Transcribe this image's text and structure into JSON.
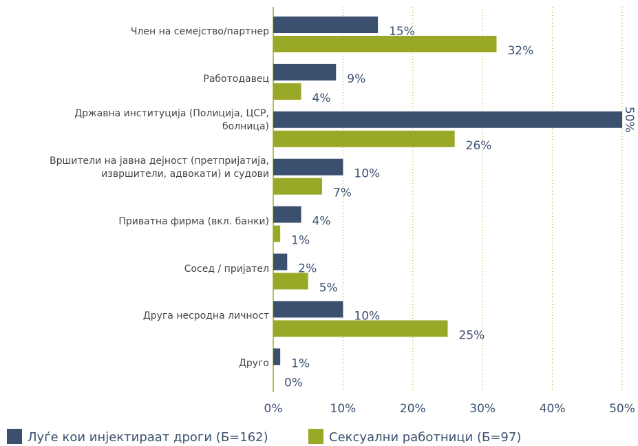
{
  "chart_data": {
    "type": "bar",
    "orientation": "horizontal",
    "categories": [
      "Член на семејство/партнер",
      "Работодавец",
      "Државна институција (Полиција, ЦСР, болница)",
      "Вршители на јавна дејност (претпријатија, извршители, адвокати) и судови",
      "Приватна фирма (вкл. банки)",
      "Сосед / пријател",
      "Друга несродна личност",
      "Друго"
    ],
    "series": [
      {
        "name": "Луѓе кои инјектираат droги (Б=162)",
        "color": "#3b506f",
        "values": [
          15,
          9,
          50,
          10,
          4,
          2,
          10,
          1
        ],
        "value_labels": [
          "15%",
          "9%",
          "50%",
          "10%",
          "4%",
          "2%",
          "10%",
          "1%"
        ]
      },
      {
        "name": "Сексуални работници (Б=97)",
        "color": "#9aa828",
        "values": [
          32,
          4,
          26,
          7,
          1,
          5,
          25,
          0
        ],
        "value_labels": [
          "32%",
          "4%",
          "26%",
          "7%",
          "1%",
          "5%",
          "25%",
          "0%"
        ]
      }
    ],
    "xlim": [
      0,
      50
    ],
    "xticks": [
      {
        "value": 0,
        "label": "0%"
      },
      {
        "value": 10,
        "label": "10%"
      },
      {
        "value": 20,
        "label": "20%"
      },
      {
        "value": 30,
        "label": "30%"
      },
      {
        "value": 40,
        "label": "40%"
      },
      {
        "value": 50,
        "label": "50%"
      }
    ],
    "grid": true,
    "legend": "bottom"
  }
}
